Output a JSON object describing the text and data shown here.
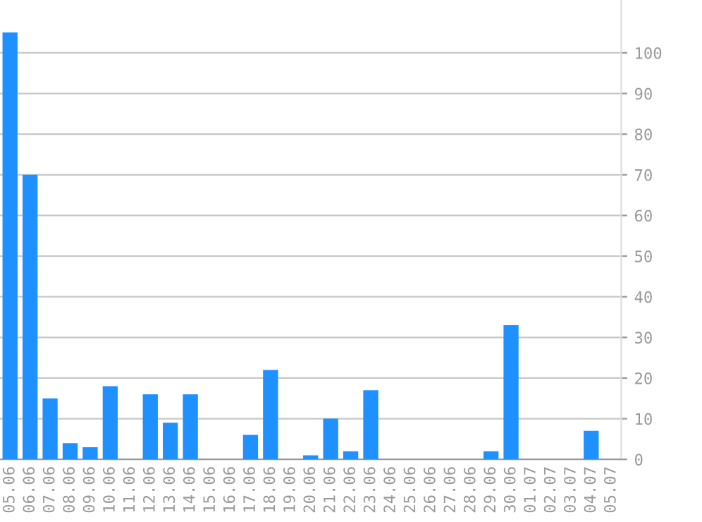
{
  "chart_data": {
    "type": "bar",
    "categories": [
      "05.06",
      "06.06",
      "07.06",
      "08.06",
      "09.06",
      "10.06",
      "11.06",
      "12.06",
      "13.06",
      "14.06",
      "15.06",
      "16.06",
      "17.06",
      "18.06",
      "19.06",
      "20.06",
      "21.06",
      "22.06",
      "23.06",
      "24.06",
      "25.06",
      "26.06",
      "27.06",
      "28.06",
      "29.06",
      "30.06",
      "01.07",
      "02.07",
      "03.07",
      "04.07",
      "05.07"
    ],
    "values": [
      105,
      70,
      15,
      4,
      3,
      18,
      0,
      16,
      9,
      16,
      0,
      0,
      6,
      22,
      0,
      1,
      10,
      2,
      17,
      0,
      0,
      0,
      0,
      0,
      2,
      33,
      0,
      0,
      0,
      7,
      0
    ],
    "color": "#1e90ff",
    "ylim": [
      0,
      113
    ],
    "yticks": [
      0,
      10,
      20,
      30,
      40,
      50,
      60,
      70,
      80,
      90,
      100
    ],
    "grid": "y"
  }
}
